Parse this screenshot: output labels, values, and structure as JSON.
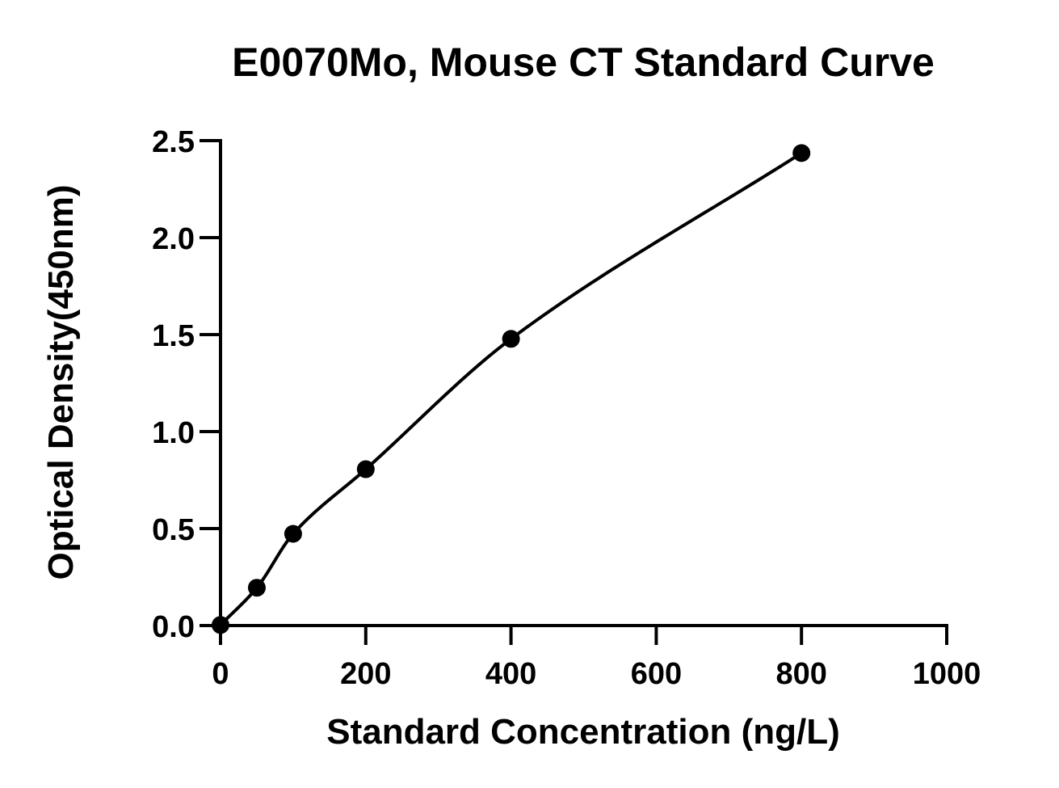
{
  "chart_data": {
    "type": "scatter",
    "title": "E0070Mo, Mouse CT Standard Curve",
    "xlabel": "Standard Concentration (ng/L)",
    "ylabel": "Optical Density(450nm)",
    "xlim": [
      0,
      1000
    ],
    "ylim": [
      0,
      2.5
    ],
    "x_ticks": [
      0,
      200,
      400,
      600,
      800,
      1000
    ],
    "x_tick_labels": [
      "0",
      "200",
      "400",
      "600",
      "800",
      "1000"
    ],
    "y_ticks": [
      0,
      0.5,
      1.0,
      1.5,
      2.0,
      2.5
    ],
    "y_tick_labels": [
      "0.0",
      "0.5",
      "1.0",
      "1.5",
      "2.0",
      "2.5"
    ],
    "grid": false,
    "series": [
      {
        "x": [
          0,
          50,
          100,
          200,
          400,
          800
        ],
        "y": [
          0.003,
          0.195,
          0.473,
          0.806,
          1.478,
          2.436
        ],
        "marker": "filled-circle",
        "fit": "smooth-curve",
        "color": "#000000"
      }
    ]
  }
}
